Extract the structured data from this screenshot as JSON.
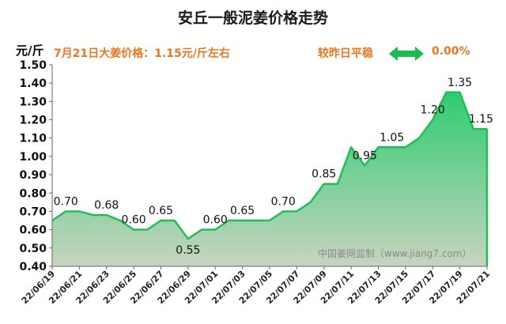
{
  "title": "安丘一般泥姜价格走势",
  "unit_label": "元/斤",
  "price_note": "7月21日大姜价格：1.15元/斤左右",
  "change_label": "较昨日平稳",
  "change_value": "0.00%",
  "watermark": "中国姜网监制（www.jiang7.com）",
  "colors": {
    "line": "#1fbf55",
    "area_top": "#2ecc71",
    "area_bottom": "#c8d4c0",
    "accent_text": "#e87722",
    "arrow": "#1dbb4f"
  },
  "chart_data": {
    "type": "area",
    "title": "安丘一般泥姜价格走势",
    "ylabel": "元/斤",
    "ylim": [
      0.4,
      1.5
    ],
    "yticks": [
      "0.40",
      "0.50",
      "0.60",
      "0.70",
      "0.80",
      "0.90",
      "1.00",
      "1.10",
      "1.20",
      "1.30",
      "1.40",
      "1.50"
    ],
    "x": [
      "22/06/19",
      "22/06/20",
      "22/06/21",
      "22/06/22",
      "22/06/23",
      "22/06/24",
      "22/06/25",
      "22/06/26",
      "22/06/27",
      "22/06/28",
      "22/06/29",
      "22/06/30",
      "22/07/01",
      "22/07/02",
      "22/07/03",
      "22/07/04",
      "22/07/05",
      "22/07/06",
      "22/07/07",
      "22/07/08",
      "22/07/09",
      "22/07/10",
      "22/07/11",
      "22/07/12",
      "22/07/13",
      "22/07/14",
      "22/07/15",
      "22/07/16",
      "22/07/17",
      "22/07/18",
      "22/07/19",
      "22/07/20",
      "22/07/21"
    ],
    "xticks_shown": [
      "22/06/19",
      "22/06/21",
      "22/06/23",
      "22/06/25",
      "22/06/27",
      "22/06/29",
      "22/07/01",
      "22/07/03",
      "22/07/05",
      "22/07/07",
      "22/07/09",
      "22/07/11",
      "22/07/13",
      "22/07/15",
      "22/07/17",
      "22/07/19",
      "22/07/21"
    ],
    "series": [
      {
        "values": [
          0.65,
          0.7,
          0.7,
          0.68,
          0.68,
          0.65,
          0.6,
          0.6,
          0.65,
          0.65,
          0.55,
          0.6,
          0.6,
          0.65,
          0.65,
          0.65,
          0.65,
          0.7,
          0.7,
          0.75,
          0.85,
          0.85,
          1.05,
          0.95,
          1.05,
          1.05,
          1.05,
          1.1,
          1.2,
          1.35,
          1.35,
          1.15,
          1.15
        ]
      }
    ],
    "data_labels": [
      {
        "x": "22/06/20",
        "text": "0.70"
      },
      {
        "x": "22/06/23",
        "text": "0.68"
      },
      {
        "x": "22/06/25",
        "text": "0.60"
      },
      {
        "x": "22/06/27",
        "text": "0.65"
      },
      {
        "x": "22/06/29",
        "text": "0.55"
      },
      {
        "x": "22/07/01",
        "text": "0.60"
      },
      {
        "x": "22/07/03",
        "text": "0.65"
      },
      {
        "x": "22/07/06",
        "text": "0.70"
      },
      {
        "x": "22/07/09",
        "text": "0.85"
      },
      {
        "x": "22/07/12",
        "text": "0.95"
      },
      {
        "x": "22/07/14",
        "text": "1.05"
      },
      {
        "x": "22/07/17",
        "text": "1.20"
      },
      {
        "x": "22/07/19",
        "text": "1.35"
      },
      {
        "x": "22/07/21",
        "text": "1.15"
      }
    ],
    "grid": false,
    "legend": "none"
  }
}
